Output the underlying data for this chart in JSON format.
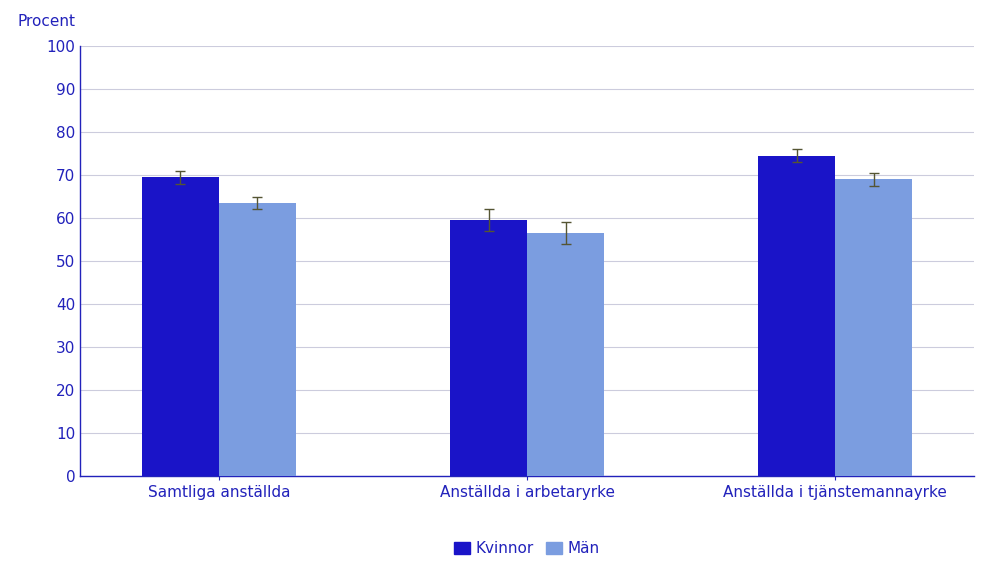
{
  "categories": [
    "Samtliga anställda",
    "Anställda i arbetaryrke",
    "Anställda i tjänstemannayrke"
  ],
  "kvinnor_values": [
    69.5,
    59.5,
    74.5
  ],
  "man_values": [
    63.5,
    56.5,
    69.0
  ],
  "kvinnor_errors": [
    1.5,
    2.5,
    1.5
  ],
  "man_errors": [
    1.5,
    2.5,
    1.5
  ],
  "color_kvinnor": "#1a14c8",
  "color_man": "#7b9de0",
  "procent_label": "Procent",
  "ylim": [
    0,
    100
  ],
  "yticks": [
    0,
    10,
    20,
    30,
    40,
    50,
    60,
    70,
    80,
    90,
    100
  ],
  "legend_labels": [
    "Kvinnor",
    "Män"
  ],
  "background_color": "#ffffff",
  "grid_color": "#ccccdd",
  "axis_color": "#2222bb",
  "bar_width": 0.25,
  "group_positions": [
    0.22,
    0.5,
    0.78
  ]
}
